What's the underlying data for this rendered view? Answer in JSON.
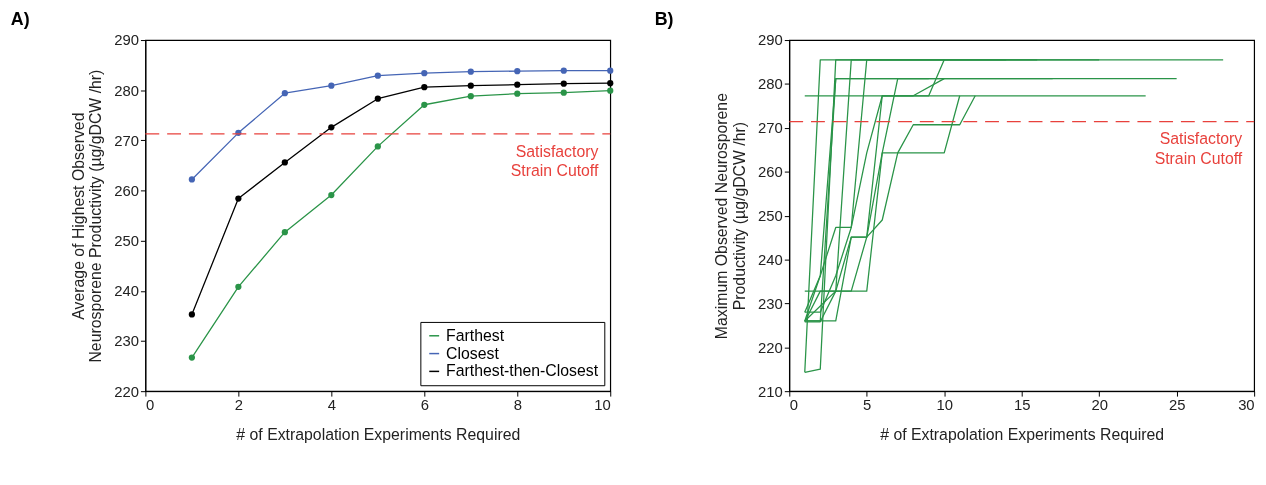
{
  "chart_data": [
    {
      "type": "line",
      "title": "A)",
      "xlabel": "# of Extrapolation Experiments Required",
      "ylabel": "Average of Highest Observed\nNeurosporene Productivity (µg/gDCW /hr)",
      "x": [
        1,
        2,
        3,
        4,
        5,
        6,
        7,
        8,
        9,
        10
      ],
      "series": [
        {
          "name": "Farthest",
          "color": "#2a9448",
          "values": [
            226.7,
            240.8,
            251.7,
            259.1,
            268.8,
            277.1,
            278.8,
            279.3,
            279.5,
            279.9
          ]
        },
        {
          "name": "Closest",
          "color": "#4565b5",
          "values": [
            262.2,
            271.5,
            279.4,
            280.9,
            282.9,
            283.4,
            283.7,
            283.8,
            283.9,
            283.9
          ]
        },
        {
          "name": "Farthest-then-Closest",
          "color": "#000000",
          "values": [
            235.3,
            258.4,
            265.6,
            272.6,
            278.3,
            280.6,
            280.9,
            281.1,
            281.3,
            281.4
          ]
        }
      ],
      "xlim": [
        0,
        10
      ],
      "xticks": [
        0,
        2,
        4,
        6,
        8,
        10
      ],
      "ylim": [
        220,
        290
      ],
      "yticks": [
        220,
        230,
        240,
        250,
        260,
        270,
        280,
        290
      ],
      "ref_lines": [
        {
          "axis": "y",
          "value": 271.3,
          "label": "Satisfactory\nStrain Cutoff",
          "color": "#e8413c",
          "line_style": "dashed"
        }
      ],
      "legend": "bottom right",
      "marker": "circle",
      "line_style": "solid",
      "grid": false
    },
    {
      "type": "line",
      "title": "B)",
      "xlabel": "# of Extrapolation Experiments Required",
      "ylabel": "Maximum Observed Neurosporene\nProductivity (µg/gDCW /hr)",
      "series": [
        {
          "color": "#2a9448",
          "x": [
            1,
            2,
            3,
            28
          ],
          "values": [
            214.3,
            215.0,
            285.5,
            285.5
          ]
        },
        {
          "color": "#2a9448",
          "x": [
            1,
            2,
            3,
            25
          ],
          "values": [
            226.0,
            226.0,
            281.2,
            281.2
          ]
        },
        {
          "color": "#2a9448",
          "x": [
            1,
            23
          ],
          "values": [
            277.3,
            277.3
          ]
        },
        {
          "color": "#2a9448",
          "x": [
            1,
            2,
            3,
            4,
            5,
            20
          ],
          "values": [
            228.0,
            236.3,
            247.3,
            247.3,
            285.5,
            285.5
          ]
        },
        {
          "color": "#2a9448",
          "x": [
            1,
            2,
            3,
            4,
            5,
            6,
            7,
            17
          ],
          "values": [
            225.8,
            225.8,
            232.8,
            232.8,
            232.8,
            264.3,
            281.2,
            281.2
          ]
        },
        {
          "color": "#2a9448",
          "x": [
            1,
            3,
            4,
            5,
            6,
            7,
            10,
            11
          ],
          "values": [
            226.0,
            226.0,
            245.1,
            245.1,
            249.0,
            264.3,
            264.3,
            277.3
          ]
        },
        {
          "color": "#2a9448",
          "x": [
            1,
            4,
            5,
            6,
            7,
            8,
            9,
            11,
            12
          ],
          "values": [
            232.8,
            232.8,
            245.1,
            264.3,
            264.3,
            270.7,
            270.7,
            270.7,
            277.3
          ]
        },
        {
          "color": "#2a9448",
          "x": [
            1,
            3,
            4,
            14
          ],
          "values": [
            226.0,
            232.8,
            285.5,
            285.5
          ]
        },
        {
          "color": "#2a9448",
          "x": [
            1,
            2,
            3,
            9
          ],
          "values": [
            226.0,
            236.3,
            281.2,
            281.2
          ]
        },
        {
          "color": "#2a9448",
          "x": [
            1,
            2,
            3,
            4,
            5,
            6,
            8,
            10
          ],
          "values": [
            228.0,
            228.0,
            236.3,
            247.3,
            264.3,
            277.3,
            277.3,
            281.2
          ]
        },
        {
          "color": "#2a9448",
          "x": [
            1,
            2,
            3,
            4,
            5,
            6,
            9,
            10
          ],
          "values": [
            225.8,
            232.8,
            232.8,
            245.1,
            245.1,
            277.3,
            277.3,
            285.5
          ]
        },
        {
          "color": "#2a9448",
          "x": [
            1,
            2,
            6,
            16
          ],
          "values": [
            214.3,
            285.5,
            285.5,
            285.5
          ]
        }
      ],
      "xlim": [
        0,
        30
      ],
      "xticks": [
        0,
        5,
        10,
        15,
        20,
        25,
        30
      ],
      "ylim": [
        210,
        290
      ],
      "yticks": [
        210,
        220,
        230,
        240,
        250,
        260,
        270,
        280,
        290
      ],
      "ref_lines": [
        {
          "axis": "y",
          "value": 271.4,
          "label": "Satisfactory\nStrain Cutoff",
          "color": "#e8413c",
          "line_style": "dashed"
        }
      ],
      "line_style": "solid",
      "grid": false
    }
  ]
}
